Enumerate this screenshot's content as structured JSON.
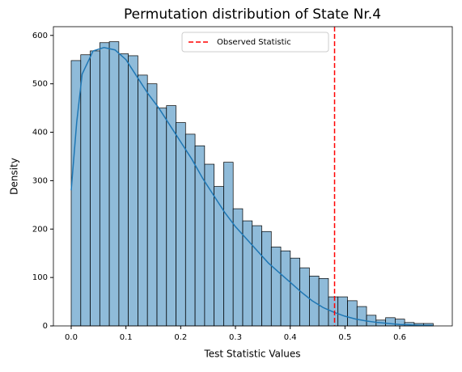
{
  "chart_data": {
    "type": "histogram",
    "title": "Permutation distribution of State Nr.4",
    "xlabel": "Test Statistic Values",
    "ylabel": "Density",
    "bins": [
      0,
      0.0174,
      0.0348,
      0.0522,
      0.0696,
      0.087,
      0.1044,
      0.1218,
      0.1392,
      0.1566,
      0.174,
      0.1914,
      0.2088,
      0.2262,
      0.2436,
      0.261,
      0.2784,
      0.2958,
      0.3132,
      0.3306,
      0.348,
      0.3654,
      0.3828,
      0.4002,
      0.4176,
      0.435,
      0.4524,
      0.4698,
      0.4872,
      0.5046,
      0.522,
      0.5394,
      0.5568,
      0.5742,
      0.5916,
      0.609,
      0.6264,
      0.6438,
      0.6612
    ],
    "counts": [
      548,
      560,
      568,
      585,
      587,
      562,
      558,
      518,
      500,
      450,
      455,
      420,
      396,
      372,
      334,
      288,
      338,
      242,
      217,
      207,
      195,
      163,
      155,
      140,
      120,
      103,
      98,
      60,
      60,
      52,
      40,
      22,
      12,
      17,
      14,
      7,
      5,
      5
    ],
    "color": "#1f77b4",
    "kde": {
      "x": [
        0,
        0.01,
        0.02,
        0.04,
        0.06,
        0.08,
        0.1,
        0.12,
        0.14,
        0.16,
        0.18,
        0.2,
        0.22,
        0.24,
        0.26,
        0.28,
        0.3,
        0.32,
        0.34,
        0.36,
        0.38,
        0.4,
        0.42,
        0.44,
        0.46,
        0.48,
        0.5,
        0.52,
        0.54,
        0.56,
        0.58,
        0.6,
        0.62,
        0.64,
        0.66
      ],
      "y": [
        280,
        420,
        520,
        568,
        575,
        570,
        550,
        515,
        480,
        450,
        415,
        380,
        345,
        305,
        270,
        235,
        205,
        180,
        155,
        130,
        110,
        90,
        70,
        52,
        38,
        28,
        20,
        14,
        10,
        7,
        5,
        3,
        2,
        1,
        1
      ]
    },
    "observed": {
      "value": 0.481,
      "name": "Observed Statistic",
      "color": "#ff0000"
    },
    "xlim": [
      -0.0325,
      0.696
    ],
    "ylim": [
      0,
      618
    ],
    "xticks": [
      {
        "value": 0,
        "label": "0.0"
      },
      0.1,
      0.2,
      0.3,
      0.4,
      0.5,
      0.6
    ],
    "yticks": [
      0,
      100,
      200,
      300,
      400,
      500,
      600
    ]
  }
}
